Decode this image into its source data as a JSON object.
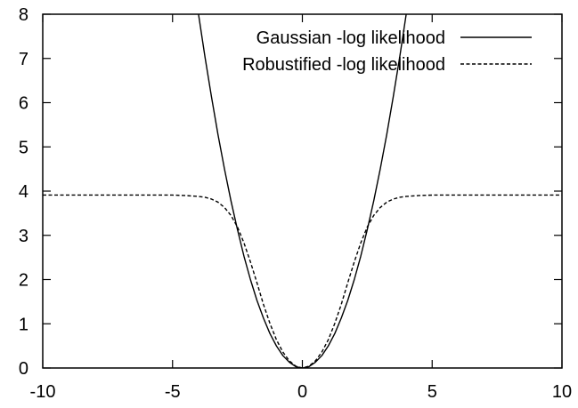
{
  "chart_data": {
    "type": "line",
    "title": "",
    "xlabel": "",
    "ylabel": "",
    "xlim": [
      -10,
      10
    ],
    "ylim": [
      0,
      8
    ],
    "x_ticks": [
      -10,
      -5,
      0,
      5,
      10
    ],
    "y_ticks": [
      0,
      1,
      2,
      3,
      4,
      5,
      6,
      7,
      8
    ],
    "grid": false,
    "legend_position": "top-right",
    "series": [
      {
        "name": "Gaussian -log likelihood",
        "style": "solid",
        "color": "#000000",
        "x": [
          -4.0,
          -3.75,
          -3.5,
          -3.25,
          -3.0,
          -2.75,
          -2.5,
          -2.25,
          -2.0,
          -1.75,
          -1.5,
          -1.25,
          -1.0,
          -0.75,
          -0.5,
          -0.25,
          0.0,
          0.25,
          0.5,
          0.75,
          1.0,
          1.25,
          1.5,
          1.75,
          2.0,
          2.25,
          2.5,
          2.75,
          3.0,
          3.25,
          3.5,
          3.75,
          4.0
        ],
        "y": [
          8.0,
          7.03,
          6.13,
          5.28,
          4.5,
          3.78,
          3.13,
          2.53,
          2.0,
          1.53,
          1.13,
          0.78,
          0.5,
          0.28,
          0.13,
          0.03,
          0.0,
          0.03,
          0.13,
          0.28,
          0.5,
          0.78,
          1.13,
          1.53,
          2.0,
          2.53,
          3.13,
          3.78,
          4.5,
          5.28,
          6.13,
          7.03,
          8.0
        ]
      },
      {
        "name": "Robustified -log likelihood",
        "style": "dashed",
        "color": "#000000",
        "x": [
          -10.0,
          -9.0,
          -8.0,
          -7.0,
          -6.0,
          -5.0,
          -4.5,
          -4.0,
          -3.75,
          -3.5,
          -3.25,
          -3.0,
          -2.75,
          -2.5,
          -2.25,
          -2.0,
          -1.75,
          -1.5,
          -1.25,
          -1.0,
          -0.75,
          -0.5,
          -0.25,
          0.0,
          0.25,
          0.5,
          0.75,
          1.0,
          1.25,
          1.5,
          1.75,
          2.0,
          2.25,
          2.5,
          2.75,
          3.0,
          3.25,
          3.5,
          3.75,
          4.0,
          4.5,
          5.0,
          6.0,
          7.0,
          8.0,
          9.0,
          10.0
        ],
        "y": [
          3.91,
          3.91,
          3.91,
          3.91,
          3.91,
          3.91,
          3.9,
          3.88,
          3.86,
          3.82,
          3.75,
          3.63,
          3.45,
          3.19,
          2.83,
          2.4,
          1.93,
          1.44,
          1.01,
          0.64,
          0.36,
          0.16,
          0.04,
          0.0,
          0.04,
          0.16,
          0.36,
          0.64,
          1.01,
          1.44,
          1.93,
          2.4,
          2.83,
          3.19,
          3.45,
          3.63,
          3.75,
          3.82,
          3.86,
          3.88,
          3.9,
          3.91,
          3.91,
          3.91,
          3.91,
          3.91,
          3.91
        ]
      }
    ]
  }
}
